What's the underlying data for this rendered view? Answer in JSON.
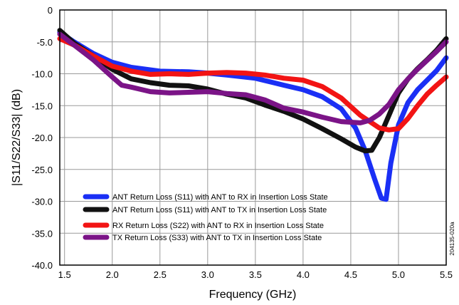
{
  "chart_data": {
    "type": "line",
    "xlabel": "Frequency (GHz)",
    "ylabel": "|S11/S22/S33| (dB)",
    "xlim": [
      1.45,
      5.5
    ],
    "ylim": [
      -40,
      0
    ],
    "x_ticks": [
      1.5,
      2.0,
      2.5,
      3.0,
      3.5,
      4.0,
      4.5,
      5.0,
      5.5
    ],
    "x_tick_labels": [
      "1.5",
      "2.0",
      "2.5",
      "3.0",
      "3.5",
      "4.0",
      "4.5",
      "5.0",
      "5.5"
    ],
    "y_ticks": [
      0,
      -5,
      -10,
      -15,
      -20,
      -25,
      -30,
      -35,
      -40
    ],
    "y_tick_labels": [
      "0",
      "-5.0",
      "-10.0",
      "-15.0",
      "-20.0",
      "-25.0",
      "-30.0",
      "-35.0",
      "-40.0"
    ],
    "grid": true,
    "legend_position": "bottom-left",
    "side_note": "204135-020a",
    "series": [
      {
        "name": "ANT Return Loss (S11) with ANT to RX in Insertion Loss State",
        "color": "#1a2ff5",
        "x": [
          1.45,
          1.6,
          1.8,
          2.0,
          2.2,
          2.5,
          2.8,
          3.0,
          3.2,
          3.5,
          3.8,
          4.0,
          4.2,
          4.4,
          4.55,
          4.65,
          4.75,
          4.82,
          4.87,
          4.92,
          5.0,
          5.1,
          5.2,
          5.3,
          5.4,
          5.5
        ],
        "y": [
          -3.5,
          -5.0,
          -6.8,
          -8.2,
          -9.0,
          -9.6,
          -9.7,
          -9.9,
          -10.2,
          -10.7,
          -11.8,
          -12.5,
          -13.6,
          -15.5,
          -18.5,
          -22.0,
          -26.5,
          -29.5,
          -29.7,
          -24.0,
          -18.0,
          -14.5,
          -12.5,
          -11.0,
          -9.5,
          -7.5
        ]
      },
      {
        "name": "ANT Return Loss (S11) with ANT to TX in Insertion Loss State",
        "color": "#111111",
        "x": [
          1.45,
          1.6,
          1.8,
          2.0,
          2.2,
          2.4,
          2.6,
          2.8,
          3.0,
          3.2,
          3.4,
          3.6,
          3.8,
          4.0,
          4.2,
          4.4,
          4.55,
          4.65,
          4.72,
          4.8,
          4.9,
          5.0,
          5.1,
          5.2,
          5.3,
          5.4,
          5.5
        ],
        "y": [
          -3.2,
          -5.2,
          -7.2,
          -9.3,
          -10.8,
          -11.4,
          -11.8,
          -11.9,
          -12.4,
          -13.2,
          -13.8,
          -14.9,
          -15.9,
          -17.1,
          -18.6,
          -20.2,
          -21.5,
          -22.1,
          -22.0,
          -20.0,
          -16.5,
          -13.0,
          -10.8,
          -9.2,
          -7.8,
          -6.3,
          -4.5
        ]
      },
      {
        "name": "RX Return Loss (S22) with ANT to RX in Insertion Loss State",
        "color": "#f21414",
        "x": [
          1.45,
          1.6,
          1.8,
          2.0,
          2.2,
          2.4,
          2.6,
          2.8,
          3.0,
          3.2,
          3.4,
          3.6,
          3.8,
          4.0,
          4.2,
          4.4,
          4.6,
          4.8,
          4.9,
          5.0,
          5.1,
          5.2,
          5.3,
          5.4,
          5.5
        ],
        "y": [
          -4.5,
          -5.5,
          -7.2,
          -8.8,
          -9.6,
          -10.1,
          -10.0,
          -10.1,
          -9.9,
          -9.8,
          -9.9,
          -10.2,
          -10.7,
          -11.0,
          -12.0,
          -13.8,
          -16.5,
          -18.5,
          -18.8,
          -18.6,
          -17.0,
          -15.0,
          -13.2,
          -11.8,
          -10.5
        ]
      },
      {
        "name": "TX Return Loss (S33) with ANT to TX in Insertion Loss State",
        "color": "#7b1487",
        "x": [
          1.45,
          1.6,
          1.8,
          2.0,
          2.1,
          2.2,
          2.4,
          2.6,
          2.8,
          3.0,
          3.2,
          3.4,
          3.6,
          3.8,
          4.0,
          4.2,
          4.4,
          4.6,
          4.7,
          4.8,
          4.9,
          5.0,
          5.1,
          5.2,
          5.3,
          5.4,
          5.5
        ],
        "y": [
          -3.8,
          -5.5,
          -7.8,
          -10.5,
          -11.8,
          -12.1,
          -12.8,
          -13.0,
          -12.9,
          -12.8,
          -13.1,
          -13.3,
          -14.1,
          -15.4,
          -16.0,
          -16.8,
          -17.5,
          -17.7,
          -17.3,
          -16.3,
          -14.8,
          -12.5,
          -10.8,
          -9.3,
          -7.9,
          -6.5,
          -5.0
        ]
      }
    ]
  }
}
